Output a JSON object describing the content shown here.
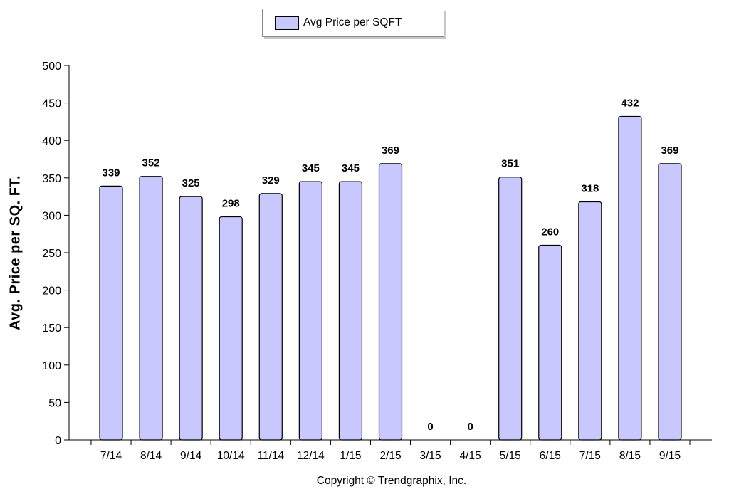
{
  "chart_data": {
    "type": "bar",
    "title": "",
    "legend": {
      "position": "top-center",
      "entries": [
        "Avg Price per SQFT"
      ]
    },
    "ylabel": "Avg. Price per SQ. FT.",
    "xlabel": "",
    "ylim": [
      0,
      500
    ],
    "yticks": [
      0,
      50,
      100,
      150,
      200,
      250,
      300,
      350,
      400,
      450,
      500
    ],
    "categories": [
      "7/14",
      "8/14",
      "9/14",
      "10/14",
      "11/14",
      "12/14",
      "1/15",
      "2/15",
      "3/15",
      "4/15",
      "5/15",
      "6/15",
      "7/15",
      "8/15",
      "9/15"
    ],
    "series": [
      {
        "name": "Avg Price per SQFT",
        "values": [
          339,
          352,
          325,
          298,
          329,
          345,
          345,
          369,
          0,
          0,
          351,
          260,
          318,
          432,
          369
        ],
        "color": "#c8c8ff"
      }
    ],
    "data_labels": [
      "339",
      "352",
      "325",
      "298",
      "329",
      "345",
      "345",
      "369",
      "0",
      "0",
      "351",
      "260",
      "318",
      "432",
      "369"
    ],
    "grid": false
  },
  "footer": {
    "text": "Copyright © Trendgraphix, Inc."
  },
  "colors": {
    "bar_fill": "#c8c8ff",
    "bar_stroke": "#000000",
    "axis": "#000000"
  }
}
